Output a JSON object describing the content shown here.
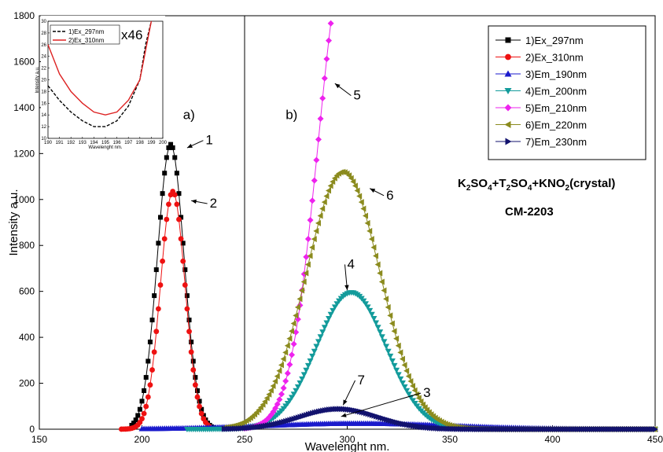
{
  "chart_data": {
    "type": "scatter",
    "xlabel": "Wavelenght nm.",
    "ylabel": "Intensity a.u.",
    "xlim": [
      150,
      450
    ],
    "ylim": [
      0,
      1800
    ],
    "xticks": [
      150,
      200,
      250,
      300,
      350,
      400,
      450
    ],
    "yticks": [
      0,
      200,
      400,
      600,
      800,
      1000,
      1200,
      1400,
      1600,
      1800
    ],
    "divider_x": 250,
    "panel_labels": [
      "a)",
      "b)"
    ],
    "formula": {
      "parts": [
        "K",
        "2",
        "SO",
        "4",
        "+T",
        "2",
        "SO",
        "4",
        "+KNO",
        "2",
        "(crystal)"
      ],
      "subscripts": [
        1,
        3,
        5,
        7,
        9
      ]
    },
    "sample": "CM-2203",
    "series": [
      {
        "name": "1)Ex_297nm",
        "color": "#000000",
        "marker": "square",
        "peak_x": 214,
        "sigma": 6.5,
        "amp": 1240,
        "x_range": [
          195,
          235
        ],
        "step": 1
      },
      {
        "name": "2)Ex_310nm",
        "color": "#ee1111",
        "marker": "circle",
        "peak_x": 215,
        "sigma": 6.0,
        "amp": 1035,
        "x_range": [
          190,
          233
        ],
        "step": 1
      },
      {
        "name": "3)Em_190nm",
        "color": "#1a1acc",
        "marker": "triangle-up",
        "peak_x": 305,
        "sigma": 45,
        "amp": 25,
        "x_range": [
          200,
          450
        ],
        "step": 1
      },
      {
        "name": "4)Em_200nm",
        "color": "#139b9b",
        "marker": "triangle-down",
        "peak_x": 302,
        "sigma": 17,
        "amp": 595,
        "x_range": [
          222,
          450
        ],
        "step": 1
      },
      {
        "name": "5)Em_210nm",
        "color": "#ee22ee",
        "marker": "diamond",
        "peak_x": 300,
        "sigma": 14,
        "amp": 2080,
        "x_range": [
          250,
          296
        ],
        "step": 1
      },
      {
        "name": "6)Em_220nm",
        "color": "#8b8b1e",
        "marker": "triangle-left",
        "peak_x": 298,
        "sigma": 18,
        "amp": 1120,
        "x_range": [
          240,
          450
        ],
        "step": 1
      },
      {
        "name": "7)Em_230nm",
        "color": "#12126e",
        "marker": "triangle-right",
        "peak_x": 296,
        "sigma": 19,
        "amp": 88,
        "x_range": [
          240,
          450
        ],
        "step": 1
      }
    ],
    "annotations": [
      {
        "text": "1",
        "x": 231,
        "y": 1240,
        "arrow_to": [
          222,
          1225
        ]
      },
      {
        "text": "2",
        "x": 233,
        "y": 965,
        "arrow_to": [
          224,
          995
        ]
      },
      {
        "text": "5",
        "x": 303,
        "y": 1435,
        "arrow_to": [
          294,
          1505
        ]
      },
      {
        "text": "6",
        "x": 319,
        "y": 1000,
        "arrow_to": [
          311,
          1048
        ]
      },
      {
        "text": "4",
        "x": 300,
        "y": 700,
        "arrow_to": [
          300,
          605
        ]
      },
      {
        "text": "7",
        "x": 305,
        "y": 195,
        "arrow_to": [
          298,
          105
        ]
      },
      {
        "text": "3",
        "x": 337,
        "y": 140,
        "arrow_to": [
          297,
          55
        ]
      }
    ],
    "inset": {
      "xlabel": "Wavelenght nm.",
      "ylabel": "Intensity a.u.",
      "xlim": [
        190,
        200
      ],
      "ylim": [
        10,
        30
      ],
      "xticks": [
        190,
        191,
        192,
        193,
        194,
        195,
        196,
        197,
        198,
        199,
        200
      ],
      "yticks": [
        10,
        12,
        14,
        16,
        18,
        20,
        22,
        24,
        26,
        28,
        30
      ],
      "multiplier": "x46",
      "series": [
        {
          "name": "1)Ex_297nm",
          "color": "#000000",
          "style": "dashed",
          "x": [
            190,
            191,
            192,
            193,
            194,
            195,
            196,
            197,
            198,
            198.5,
            199
          ],
          "y": [
            19,
            16.5,
            14.5,
            13,
            12,
            12,
            13,
            15.5,
            20,
            26,
            30
          ]
        },
        {
          "name": "2)Ex_310nm",
          "color": "#dd2222",
          "style": "solid",
          "x": [
            190,
            191,
            192,
            193,
            194,
            195,
            196,
            197,
            198,
            198.5,
            199
          ],
          "y": [
            26,
            21,
            18,
            16,
            14.5,
            14,
            14.5,
            16.5,
            20,
            25,
            30
          ]
        }
      ]
    }
  }
}
